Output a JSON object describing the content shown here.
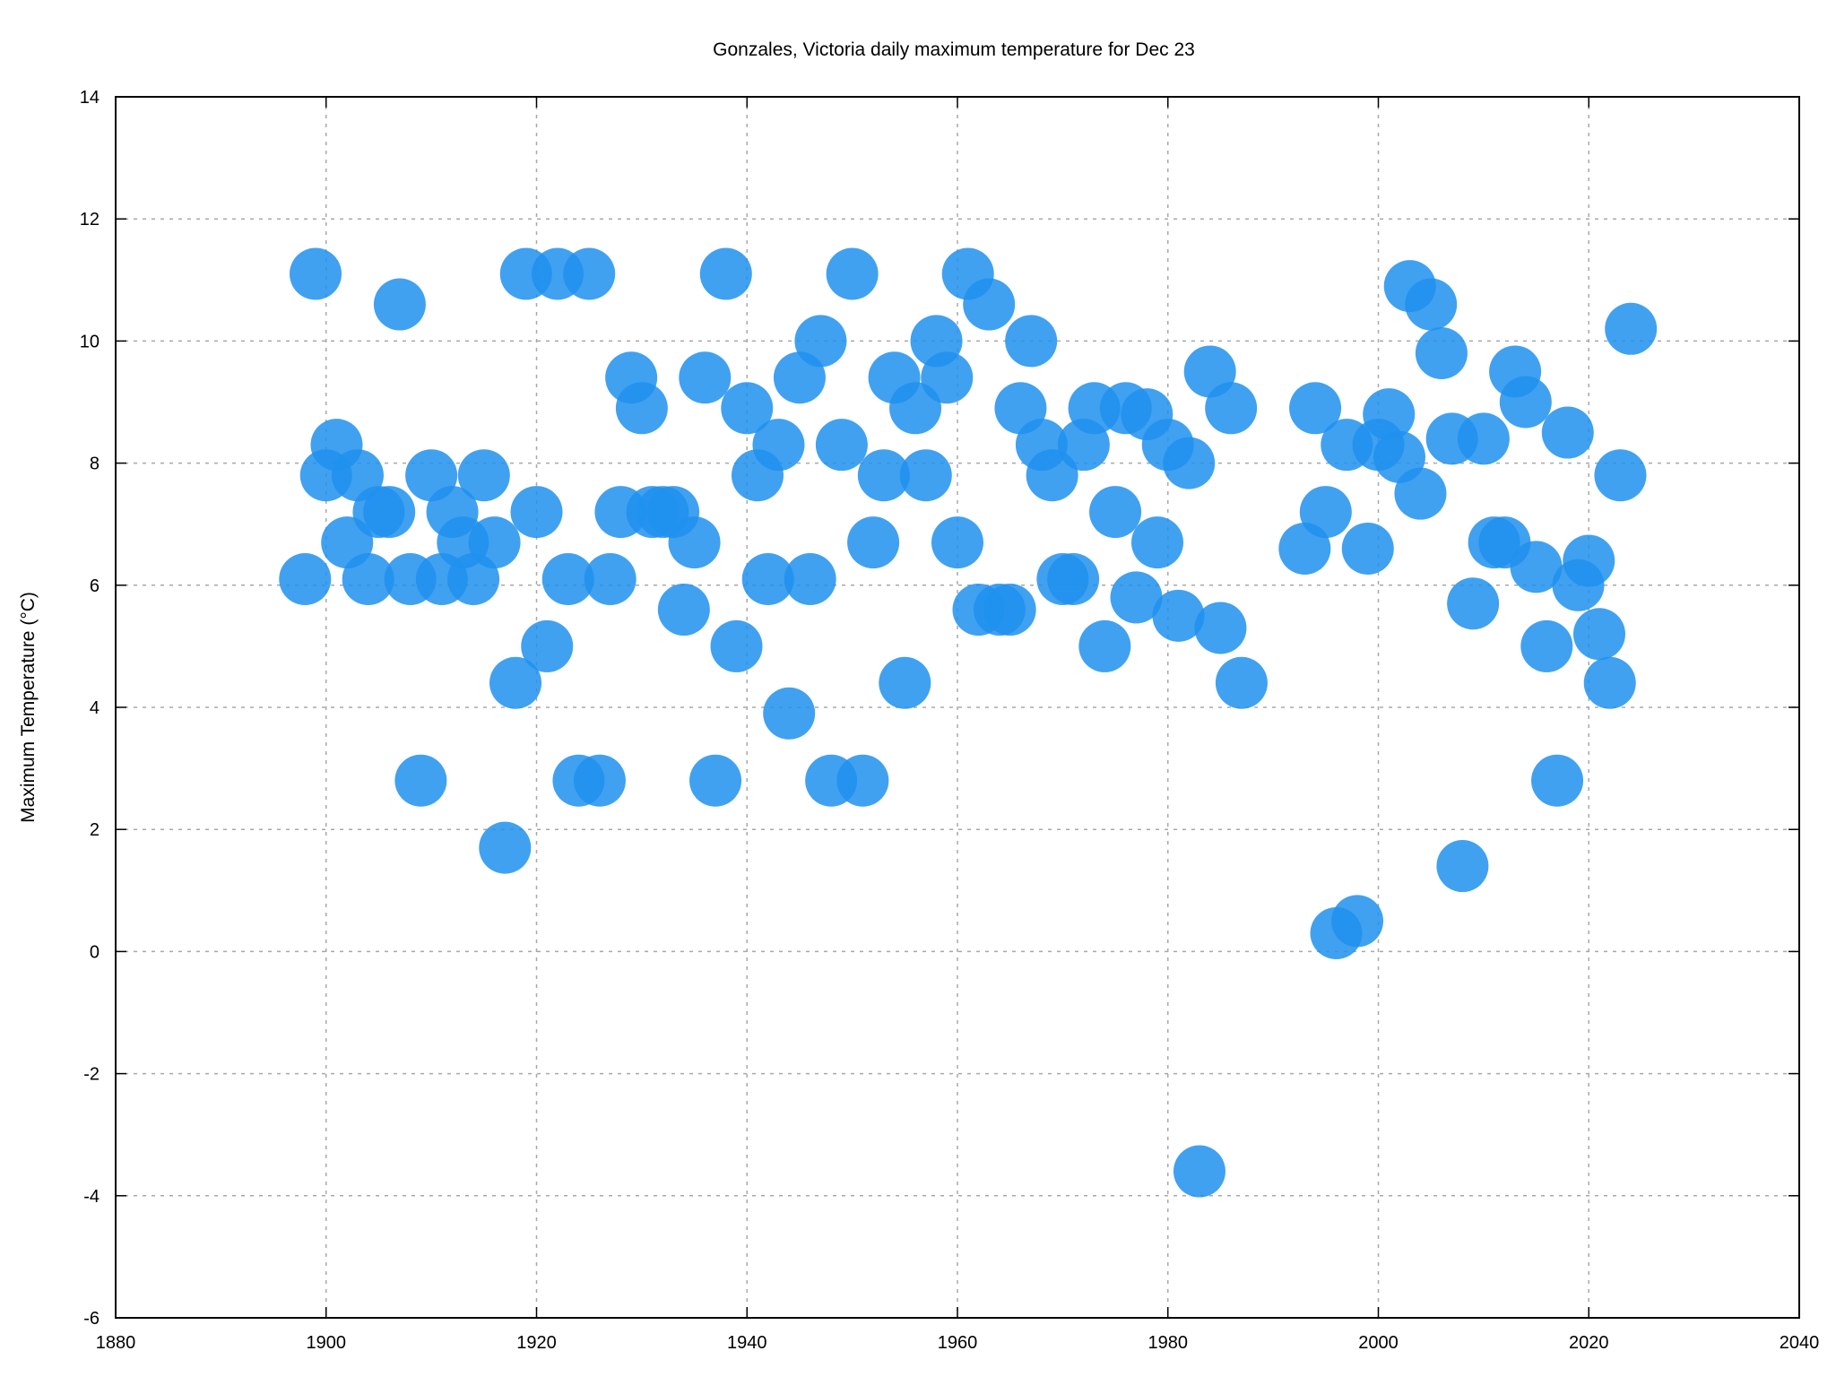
{
  "chart_data": {
    "type": "scatter",
    "title": "Gonzales, Victoria daily maximum temperature for Dec 23",
    "xlabel": "",
    "ylabel": "Maximum Temperature (°C)",
    "xlim": [
      1880,
      2040
    ],
    "ylim": [
      -6,
      14
    ],
    "x_ticks": [
      1880,
      1900,
      1920,
      1940,
      1960,
      1980,
      2000,
      2020,
      2040
    ],
    "y_ticks": [
      -6,
      -4,
      -2,
      0,
      2,
      4,
      6,
      8,
      10,
      12,
      14
    ],
    "grid": true,
    "marker_color": "#1e90ef",
    "series": [
      {
        "points": [
          [
            1898,
            6.1
          ],
          [
            1899,
            11.1
          ],
          [
            1900,
            7.8
          ],
          [
            1901,
            8.3
          ],
          [
            1902,
            6.7
          ],
          [
            1903,
            7.8
          ],
          [
            1904,
            6.1
          ],
          [
            1905,
            7.2
          ],
          [
            1906,
            7.2
          ],
          [
            1907,
            10.6
          ],
          [
            1908,
            6.1
          ],
          [
            1909,
            2.8
          ],
          [
            1910,
            7.8
          ],
          [
            1911,
            6.1
          ],
          [
            1912,
            7.2
          ],
          [
            1913,
            6.7
          ],
          [
            1914,
            6.1
          ],
          [
            1915,
            7.8
          ],
          [
            1916,
            6.7
          ],
          [
            1917,
            1.7
          ],
          [
            1918,
            4.4
          ],
          [
            1919,
            11.1
          ],
          [
            1920,
            7.2
          ],
          [
            1921,
            5.0
          ],
          [
            1922,
            11.1
          ],
          [
            1923,
            6.1
          ],
          [
            1924,
            2.8
          ],
          [
            1925,
            11.1
          ],
          [
            1926,
            2.8
          ],
          [
            1927,
            6.1
          ],
          [
            1928,
            7.2
          ],
          [
            1929,
            9.4
          ],
          [
            1930,
            8.9
          ],
          [
            1931,
            7.2
          ],
          [
            1932,
            7.2
          ],
          [
            1933,
            7.2
          ],
          [
            1934,
            5.6
          ],
          [
            1935,
            6.7
          ],
          [
            1936,
            9.4
          ],
          [
            1937,
            2.8
          ],
          [
            1938,
            11.1
          ],
          [
            1939,
            5.0
          ],
          [
            1940,
            8.9
          ],
          [
            1941,
            7.8
          ],
          [
            1942,
            6.1
          ],
          [
            1943,
            8.3
          ],
          [
            1944,
            3.9
          ],
          [
            1945,
            9.4
          ],
          [
            1946,
            6.1
          ],
          [
            1947,
            10.0
          ],
          [
            1948,
            2.8
          ],
          [
            1949,
            8.3
          ],
          [
            1950,
            11.1
          ],
          [
            1951,
            2.8
          ],
          [
            1952,
            6.7
          ],
          [
            1953,
            7.8
          ],
          [
            1954,
            9.4
          ],
          [
            1955,
            4.4
          ],
          [
            1956,
            8.9
          ],
          [
            1957,
            7.8
          ],
          [
            1958,
            10.0
          ],
          [
            1959,
            9.4
          ],
          [
            1960,
            6.7
          ],
          [
            1961,
            11.1
          ],
          [
            1962,
            5.6
          ],
          [
            1963,
            10.6
          ],
          [
            1964,
            5.6
          ],
          [
            1965,
            5.6
          ],
          [
            1966,
            8.9
          ],
          [
            1967,
            10.0
          ],
          [
            1968,
            8.3
          ],
          [
            1969,
            7.8
          ],
          [
            1970,
            6.1
          ],
          [
            1971,
            6.1
          ],
          [
            1972,
            8.3
          ],
          [
            1973,
            8.9
          ],
          [
            1974,
            5.0
          ],
          [
            1975,
            7.2
          ],
          [
            1976,
            8.9
          ],
          [
            1977,
            5.8
          ],
          [
            1978,
            8.8
          ],
          [
            1979,
            6.7
          ],
          [
            1980,
            8.3
          ],
          [
            1981,
            5.5
          ],
          [
            1982,
            8.0
          ],
          [
            1983,
            -3.6
          ],
          [
            1984,
            9.5
          ],
          [
            1985,
            5.3
          ],
          [
            1986,
            8.9
          ],
          [
            1987,
            4.4
          ],
          [
            1993,
            6.6
          ],
          [
            1994,
            8.9
          ],
          [
            1995,
            7.2
          ],
          [
            1996,
            0.3
          ],
          [
            1997,
            8.3
          ],
          [
            1998,
            0.5
          ],
          [
            1999,
            6.6
          ],
          [
            2000,
            8.3
          ],
          [
            2001,
            8.8
          ],
          [
            2002,
            8.1
          ],
          [
            2003,
            10.9
          ],
          [
            2004,
            7.5
          ],
          [
            2005,
            10.6
          ],
          [
            2006,
            9.8
          ],
          [
            2007,
            8.4
          ],
          [
            2008,
            1.4
          ],
          [
            2009,
            5.7
          ],
          [
            2010,
            8.4
          ],
          [
            2011,
            6.7
          ],
          [
            2012,
            6.7
          ],
          [
            2013,
            9.5
          ],
          [
            2014,
            9.0
          ],
          [
            2015,
            6.3
          ],
          [
            2016,
            5.0
          ],
          [
            2017,
            2.8
          ],
          [
            2018,
            8.5
          ],
          [
            2019,
            6.0
          ],
          [
            2020,
            6.4
          ],
          [
            2021,
            5.2
          ],
          [
            2022,
            4.4
          ],
          [
            2023,
            7.8
          ],
          [
            2024,
            10.2
          ]
        ]
      }
    ]
  }
}
